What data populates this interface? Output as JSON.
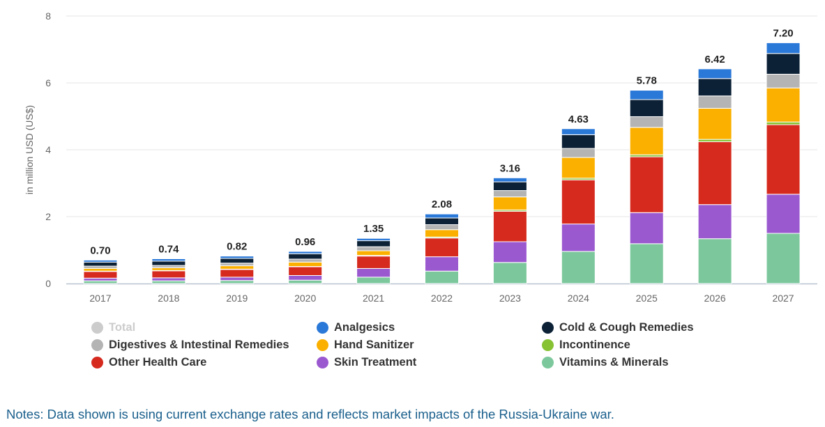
{
  "chart_data": {
    "type": "bar",
    "stacked": true,
    "ylabel": "in million USD (US$)",
    "ylim": [
      0,
      8
    ],
    "yticks": [
      "0",
      "2",
      "4",
      "6",
      "8"
    ],
    "categories": [
      "2017",
      "2018",
      "2019",
      "2020",
      "2021",
      "2022",
      "2023",
      "2024",
      "2025",
      "2026",
      "2027"
    ],
    "totals": [
      "0.70",
      "0.74",
      "0.82",
      "0.96",
      "1.35",
      "2.08",
      "3.16",
      "4.63",
      "5.78",
      "6.42",
      "7.20"
    ],
    "series": [
      {
        "name": "Vitamins & Minerals",
        "color": "#7cc89c",
        "values": [
          0.08,
          0.08,
          0.09,
          0.1,
          0.19,
          0.37,
          0.63,
          0.96,
          1.19,
          1.34,
          1.5
        ]
      },
      {
        "name": "Skin Treatment",
        "color": "#9b59d0",
        "values": [
          0.08,
          0.09,
          0.1,
          0.14,
          0.26,
          0.43,
          0.62,
          0.82,
          0.93,
          1.02,
          1.17
        ]
      },
      {
        "name": "Other Health Care",
        "color": "#d62a1e",
        "values": [
          0.2,
          0.21,
          0.23,
          0.26,
          0.37,
          0.56,
          0.91,
          1.32,
          1.67,
          1.88,
          2.08
        ]
      },
      {
        "name": "Incontinence",
        "color": "#86c232",
        "values": [
          0.01,
          0.01,
          0.01,
          0.01,
          0.02,
          0.03,
          0.04,
          0.05,
          0.06,
          0.07,
          0.08
        ]
      },
      {
        "name": "Hand Sanitizer",
        "color": "#fbb000",
        "values": [
          0.08,
          0.08,
          0.1,
          0.13,
          0.14,
          0.22,
          0.39,
          0.62,
          0.82,
          0.93,
          1.02
        ]
      },
      {
        "name": "Digestives & Intestinal Remedies",
        "color": "#b4b4b4",
        "values": [
          0.07,
          0.07,
          0.08,
          0.09,
          0.12,
          0.15,
          0.19,
          0.27,
          0.32,
          0.37,
          0.41
        ]
      },
      {
        "name": "Cold & Cough Remedies",
        "color": "#0c2136",
        "values": [
          0.12,
          0.13,
          0.14,
          0.16,
          0.18,
          0.2,
          0.26,
          0.41,
          0.51,
          0.52,
          0.62
        ]
      },
      {
        "name": "Analgesics",
        "color": "#2a78d8",
        "values": [
          0.06,
          0.07,
          0.07,
          0.07,
          0.07,
          0.12,
          0.12,
          0.18,
          0.28,
          0.29,
          0.32
        ]
      }
    ],
    "legend": [
      {
        "name": "Total",
        "color": "#cccccc",
        "muted": true
      },
      {
        "name": "Analgesics",
        "color": "#2a78d8"
      },
      {
        "name": "Cold & Cough Remedies",
        "color": "#0c2136"
      },
      {
        "name": "Digestives & Intestinal Remedies",
        "color": "#b4b4b4"
      },
      {
        "name": "Hand Sanitizer",
        "color": "#fbb000"
      },
      {
        "name": "Incontinence",
        "color": "#86c232"
      },
      {
        "name": "Other Health Care",
        "color": "#d62a1e"
      },
      {
        "name": "Skin Treatment",
        "color": "#9b59d0"
      },
      {
        "name": "Vitamins & Minerals",
        "color": "#7cc89c"
      }
    ],
    "legend_placement": "bottom",
    "grid": true
  },
  "note": "Notes: Data shown is using current exchange rates and reflects market impacts of the Russia-Ukraine war."
}
